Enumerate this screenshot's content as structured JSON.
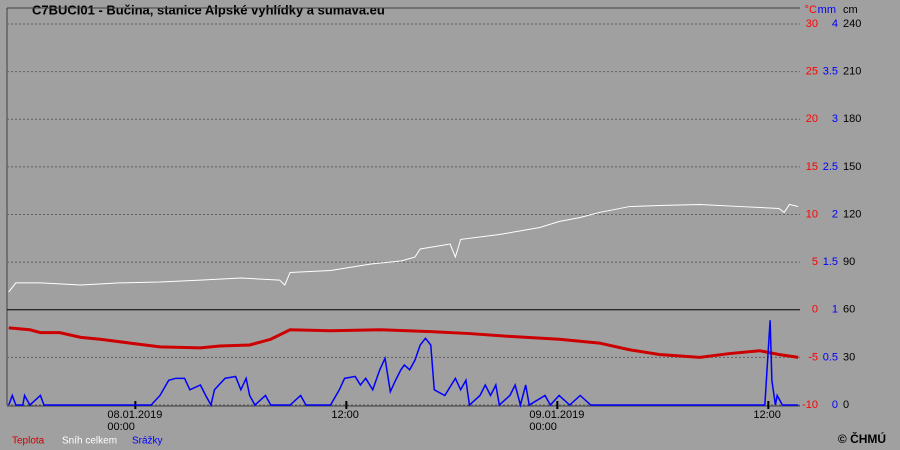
{
  "chart_data": {
    "type": "line",
    "title": "C7BUCI01 - Bučina, stanice Alpské vyhlídky a sumava.eu",
    "credit": "© ČHMÚ",
    "ylabel": "°C",
    "y2label": "mm",
    "y3label": "cm",
    "ylim": [
      -10,
      30
    ],
    "yticks": [
      -10,
      -5,
      0,
      5,
      10,
      15,
      20,
      25,
      30
    ],
    "ycolor": "#ff0000",
    "y2lim": [
      0,
      4
    ],
    "y2ticks": [
      0,
      0.5,
      1,
      1.5,
      2,
      2.5,
      3,
      3.5,
      4
    ],
    "y2color": "#0000ff",
    "y3lim": [
      0,
      240
    ],
    "y3ticks": [
      0,
      30,
      60,
      90,
      120,
      150,
      180,
      210,
      240
    ],
    "y3color": "#000000",
    "xlim": [
      -7.3,
      37.8
    ],
    "xticks": [
      {
        "value": 0,
        "label": "08.01.2019\n00:00"
      },
      {
        "value": 12,
        "label": "12:00"
      },
      {
        "value": 24,
        "label": "09.01.2019\n00:00"
      },
      {
        "value": 36,
        "label": "12:00"
      }
    ],
    "grid": true,
    "series": [
      {
        "name": "Teplota",
        "color": "#cc0000",
        "axis": "y",
        "width": 3,
        "x": [
          -7.2,
          -6.0,
          -5.4,
          -4.3,
          -3.1,
          -2.0,
          -0.3,
          1.4,
          3.7,
          4.8,
          6.5,
          7.7,
          8.8,
          11.1,
          13.9,
          16.8,
          19.0,
          21.3,
          24.1,
          26.4,
          28.1,
          29.8,
          32.1,
          33.8,
          35.5,
          36.6,
          37.7
        ],
        "values": [
          -1.9,
          -2.1,
          -2.4,
          -2.4,
          -2.9,
          -3.1,
          -3.5,
          -3.9,
          -4.0,
          -3.8,
          -3.7,
          -3.1,
          -2.1,
          -2.2,
          -2.1,
          -2.3,
          -2.5,
          -2.8,
          -3.1,
          -3.5,
          -4.2,
          -4.7,
          -5.0,
          -4.6,
          -4.3,
          -4.7,
          -5.0
        ]
      },
      {
        "name": "Sníh celkem",
        "color": "#ffffff",
        "axis": "y3",
        "width": 1,
        "x": [
          -7.2,
          -6.8,
          -5.4,
          -3.1,
          -0.9,
          1.4,
          3.7,
          6.0,
          8.2,
          8.5,
          8.8,
          11.1,
          13.4,
          15.1,
          15.9,
          16.2,
          17.9,
          18.2,
          18.5,
          20.7,
          23.0,
          24.1,
          25.3,
          26.4,
          28.1,
          29.8,
          32.1,
          34.4,
          36.6,
          36.9,
          37.2,
          37.7
        ],
        "values": [
          71.2,
          76.9,
          76.9,
          75.6,
          76.9,
          77.5,
          78.7,
          80.0,
          78.7,
          75.6,
          83.5,
          84.7,
          88.8,
          90.7,
          93.2,
          98.3,
          101.4,
          93.2,
          104.3,
          107.4,
          111.8,
          115.6,
          118.1,
          121.3,
          125.0,
          125.7,
          126.3,
          125.0,
          123.8,
          121.3,
          126.3,
          125.0
        ]
      },
      {
        "name": "Srážky",
        "color": "#0000ff",
        "axis": "y2",
        "width": 1.5,
        "x": [
          -7.2,
          -7.0,
          -6.8,
          -6.4,
          -6.3,
          -6.0,
          -5.4,
          -5.2,
          -4.8,
          0.9,
          1.4,
          1.9,
          2.3,
          2.8,
          3.1,
          3.7,
          4.0,
          4.3,
          4.5,
          5.1,
          5.7,
          6.0,
          6.3,
          6.5,
          6.8,
          7.4,
          7.7,
          8.8,
          9.4,
          9.7,
          11.1,
          11.6,
          11.9,
          12.5,
          12.8,
          13.1,
          13.5,
          13.9,
          14.2,
          14.5,
          14.8,
          15.1,
          15.3,
          15.6,
          15.9,
          16.2,
          16.5,
          16.8,
          17.0,
          17.6,
          18.2,
          18.5,
          18.8,
          19.0,
          19.6,
          19.9,
          20.2,
          20.5,
          20.7,
          21.3,
          21.6,
          21.9,
          22.2,
          22.4,
          23.3,
          23.6,
          24.1,
          24.7,
          25.3,
          25.9,
          35.8,
          36.1,
          36.2,
          36.4,
          36.5,
          36.8,
          37.7
        ],
        "values": [
          0,
          0.1,
          0,
          0,
          0.1,
          0,
          0.1,
          0,
          0,
          0,
          0.1,
          0.26,
          0.28,
          0.28,
          0.16,
          0.21,
          0.1,
          0,
          0.16,
          0.28,
          0.3,
          0.16,
          0.28,
          0.1,
          0,
          0.1,
          0,
          0,
          0.1,
          0,
          0,
          0.16,
          0.28,
          0.3,
          0.21,
          0.28,
          0.16,
          0.37,
          0.49,
          0.14,
          0.26,
          0.37,
          0.42,
          0.37,
          0.47,
          0.63,
          0.7,
          0.63,
          0.16,
          0.1,
          0.28,
          0.16,
          0.26,
          0,
          0.1,
          0.21,
          0.1,
          0.21,
          0,
          0.1,
          0.21,
          0,
          0.21,
          0,
          0.1,
          0,
          0.1,
          0,
          0.1,
          0,
          0,
          0.89,
          0.26,
          0,
          0.1,
          0,
          0
        ]
      }
    ]
  }
}
